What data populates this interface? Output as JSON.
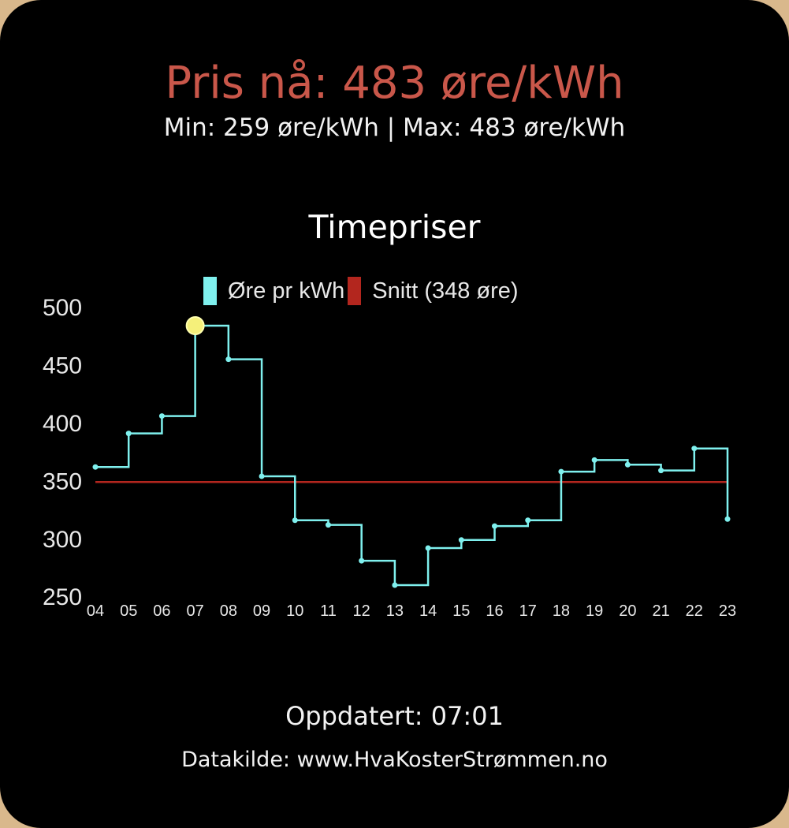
{
  "header": {
    "price_now": "Pris nå: 483 øre/kWh",
    "min_max": "Min: 259 øre/kWh | Max: 483 øre/kWh"
  },
  "footer": {
    "updated": "Oppdatert: 07:01",
    "source": "Datakilde: www.HvaKosterStrømmen.no"
  },
  "colors": {
    "price_now": "#c9574a",
    "series": "#7ff0ee",
    "average": "#b3261e",
    "highlight": "#f5f07a"
  },
  "chart_data": {
    "type": "line",
    "title": "Timepriser",
    "step": true,
    "x": [
      "04",
      "05",
      "06",
      "07",
      "08",
      "09",
      "10",
      "11",
      "12",
      "13",
      "14",
      "15",
      "16",
      "17",
      "18",
      "19",
      "20",
      "21",
      "22",
      "23"
    ],
    "series": [
      {
        "name": "Øre pr kWh",
        "values": [
          361,
          390,
          405,
          483,
          454,
          353,
          315,
          311,
          280,
          259,
          291,
          298,
          310,
          315,
          357,
          367,
          363,
          358,
          377,
          316
        ]
      },
      {
        "name": "Snitt (348 øre)",
        "value": 348
      }
    ],
    "highlight_index": 3,
    "ylim": [
      250,
      500
    ],
    "yticks": [
      250,
      300,
      350,
      400,
      450,
      500
    ],
    "legend": [
      "Øre pr kWh",
      "Snitt (348 øre)"
    ],
    "legend_position": "top",
    "grid": false
  }
}
